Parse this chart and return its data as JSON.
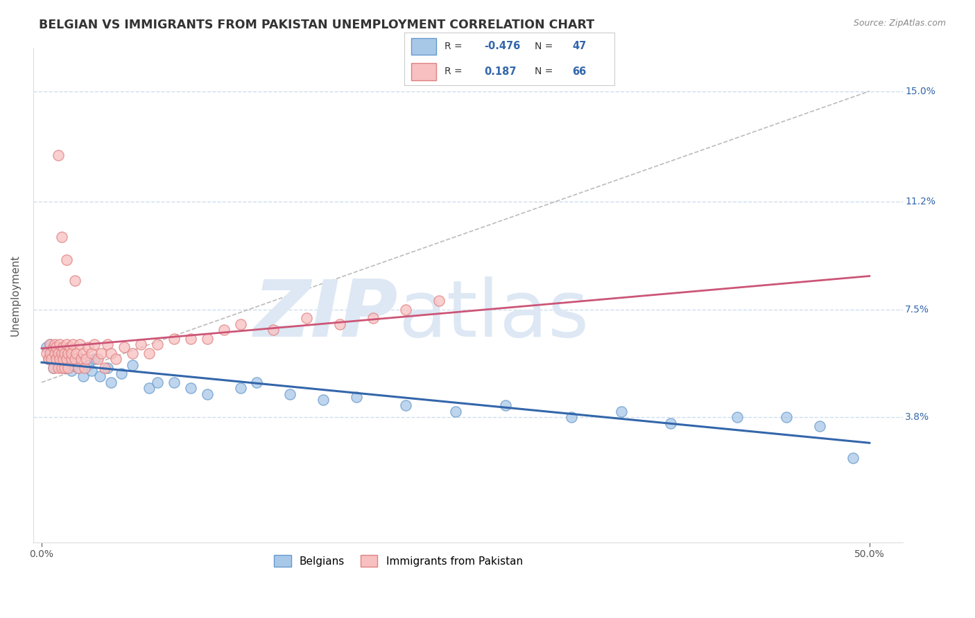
{
  "title": "BELGIAN VS IMMIGRANTS FROM PAKISTAN UNEMPLOYMENT CORRELATION CHART",
  "source": "Source: ZipAtlas.com",
  "ylabel": "Unemployment",
  "ytick_vals": [
    0.038,
    0.075,
    0.112,
    0.15
  ],
  "ytick_labels": [
    "3.8%",
    "7.5%",
    "11.2%",
    "15.0%"
  ],
  "xlim": [
    -0.005,
    0.52
  ],
  "ylim": [
    -0.005,
    0.165
  ],
  "belgians_R": -0.476,
  "belgians_N": 47,
  "pakistan_R": 0.187,
  "pakistan_N": 66,
  "blue_scatter_face": "#a8c8e8",
  "blue_scatter_edge": "#6699cc",
  "pink_scatter_face": "#f8c0c0",
  "pink_scatter_edge": "#e08080",
  "blue_line_color": "#3366aa",
  "pink_line_color": "#cc5577",
  "gray_dash_color": "#bbbbbb",
  "watermark_zip_color": "#dde8f4",
  "watermark_atlas_color": "#dde8f4",
  "background_color": "#ffffff",
  "grid_color": "#ccddee",
  "title_color": "#333333",
  "source_color": "#888888",
  "axis_label_color": "#555555",
  "tick_label_color": "#3366aa",
  "legend_box_color": "#cccccc",
  "legend_text_color": "#333333",
  "legend_value_color": "#3366aa",
  "bel_x": [
    0.003,
    0.004,
    0.005,
    0.006,
    0.007,
    0.008,
    0.009,
    0.01,
    0.011,
    0.012,
    0.013,
    0.014,
    0.015,
    0.016,
    0.018,
    0.019,
    0.02,
    0.022,
    0.025,
    0.028,
    0.03,
    0.032,
    0.035,
    0.04,
    0.042,
    0.048,
    0.055,
    0.065,
    0.07,
    0.08,
    0.09,
    0.1,
    0.12,
    0.13,
    0.15,
    0.17,
    0.19,
    0.22,
    0.25,
    0.28,
    0.32,
    0.35,
    0.38,
    0.42,
    0.45,
    0.47,
    0.49
  ],
  "bel_y": [
    0.062,
    0.058,
    0.063,
    0.06,
    0.055,
    0.061,
    0.057,
    0.059,
    0.056,
    0.06,
    0.058,
    0.055,
    0.057,
    0.059,
    0.054,
    0.056,
    0.058,
    0.055,
    0.052,
    0.056,
    0.054,
    0.058,
    0.052,
    0.055,
    0.05,
    0.053,
    0.056,
    0.048,
    0.05,
    0.05,
    0.048,
    0.046,
    0.048,
    0.05,
    0.046,
    0.044,
    0.045,
    0.042,
    0.04,
    0.042,
    0.038,
    0.04,
    0.036,
    0.038,
    0.038,
    0.035,
    0.024
  ],
  "pak_x": [
    0.003,
    0.004,
    0.005,
    0.005,
    0.006,
    0.007,
    0.007,
    0.008,
    0.008,
    0.009,
    0.009,
    0.01,
    0.01,
    0.011,
    0.011,
    0.012,
    0.012,
    0.013,
    0.013,
    0.014,
    0.014,
    0.015,
    0.015,
    0.016,
    0.016,
    0.017,
    0.018,
    0.018,
    0.019,
    0.02,
    0.021,
    0.022,
    0.023,
    0.024,
    0.025,
    0.026,
    0.027,
    0.028,
    0.03,
    0.032,
    0.034,
    0.036,
    0.038,
    0.04,
    0.042,
    0.045,
    0.05,
    0.055,
    0.06,
    0.065,
    0.07,
    0.08,
    0.09,
    0.1,
    0.11,
    0.12,
    0.14,
    0.16,
    0.18,
    0.2,
    0.22,
    0.24,
    0.01,
    0.012,
    0.015,
    0.02
  ],
  "pak_y": [
    0.06,
    0.058,
    0.06,
    0.063,
    0.058,
    0.062,
    0.055,
    0.06,
    0.063,
    0.058,
    0.062,
    0.06,
    0.055,
    0.063,
    0.058,
    0.06,
    0.055,
    0.058,
    0.062,
    0.06,
    0.055,
    0.063,
    0.058,
    0.06,
    0.055,
    0.062,
    0.058,
    0.06,
    0.063,
    0.058,
    0.06,
    0.055,
    0.063,
    0.058,
    0.06,
    0.055,
    0.058,
    0.062,
    0.06,
    0.063,
    0.058,
    0.06,
    0.055,
    0.063,
    0.06,
    0.058,
    0.062,
    0.06,
    0.063,
    0.06,
    0.063,
    0.065,
    0.065,
    0.065,
    0.068,
    0.07,
    0.068,
    0.072,
    0.07,
    0.072,
    0.075,
    0.078,
    0.128,
    0.1,
    0.092,
    0.085
  ]
}
